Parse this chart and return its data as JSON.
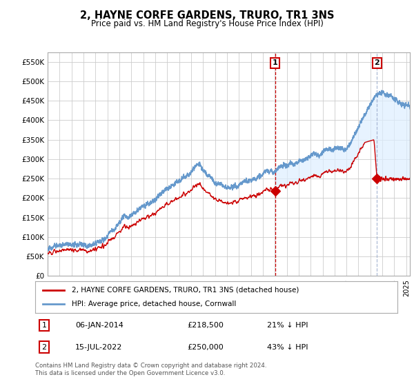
{
  "title": "2, HAYNE CORFE GARDENS, TRURO, TR1 3NS",
  "subtitle": "Price paid vs. HM Land Registry's House Price Index (HPI)",
  "ylabel_ticks": [
    "£0",
    "£50K",
    "£100K",
    "£150K",
    "£200K",
    "£250K",
    "£300K",
    "£350K",
    "£400K",
    "£450K",
    "£500K",
    "£550K"
  ],
  "ytick_values": [
    0,
    50000,
    100000,
    150000,
    200000,
    250000,
    300000,
    350000,
    400000,
    450000,
    500000,
    550000
  ],
  "ylim": [
    0,
    575000
  ],
  "xlim_start": 1995.0,
  "xlim_end": 2025.3,
  "sale1_date": 2014.033,
  "sale1_price": 218500,
  "sale2_date": 2022.54,
  "sale2_price": 250000,
  "legend_line1": "2, HAYNE CORFE GARDENS, TRURO, TR1 3NS (detached house)",
  "legend_line2": "HPI: Average price, detached house, Cornwall",
  "line_color_red": "#cc0000",
  "line_color_blue": "#6699cc",
  "fill_color_blue": "#ddeeff",
  "grid_color": "#cccccc",
  "background_color": "#ffffff",
  "dashed_color_red": "#cc0000",
  "dashed_color_blue": "#99aacc"
}
